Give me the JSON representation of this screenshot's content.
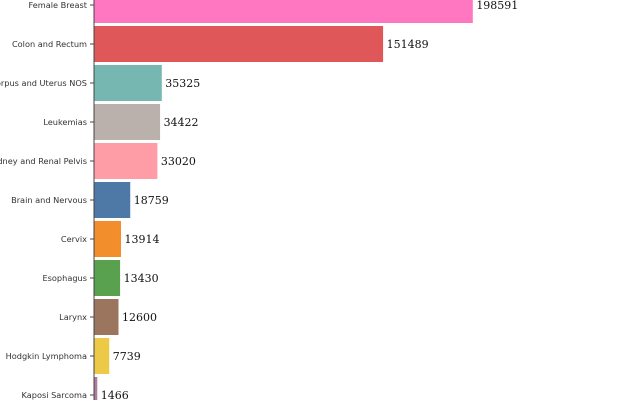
{
  "chart_data": {
    "type": "bar",
    "orientation": "horizontal",
    "title": "",
    "xlabel": "",
    "ylabel": "",
    "xlim": [
      0,
      200000
    ],
    "grid": false,
    "categories": [
      "Female Breast",
      "Colon and Rectum",
      "Corpus and Uterus NOS",
      "Leukemias",
      "Kidney and Renal Pelvis",
      "Brain and Nervous",
      "Cervix",
      "Esophagus",
      "Larynx",
      "Hodgkin Lymphoma",
      "Kaposi Sarcoma"
    ],
    "values": [
      198591,
      151489,
      35325,
      34422,
      33020,
      18759,
      13914,
      13430,
      12600,
      7739,
      1466
    ],
    "colors": [
      "#ff77c0",
      "#e05759",
      "#76b7b2",
      "#bab0ac",
      "#ff9da7",
      "#4e79a7",
      "#f28e2b",
      "#59a14f",
      "#9c755f",
      "#edc948",
      "#b07aa1"
    ]
  }
}
